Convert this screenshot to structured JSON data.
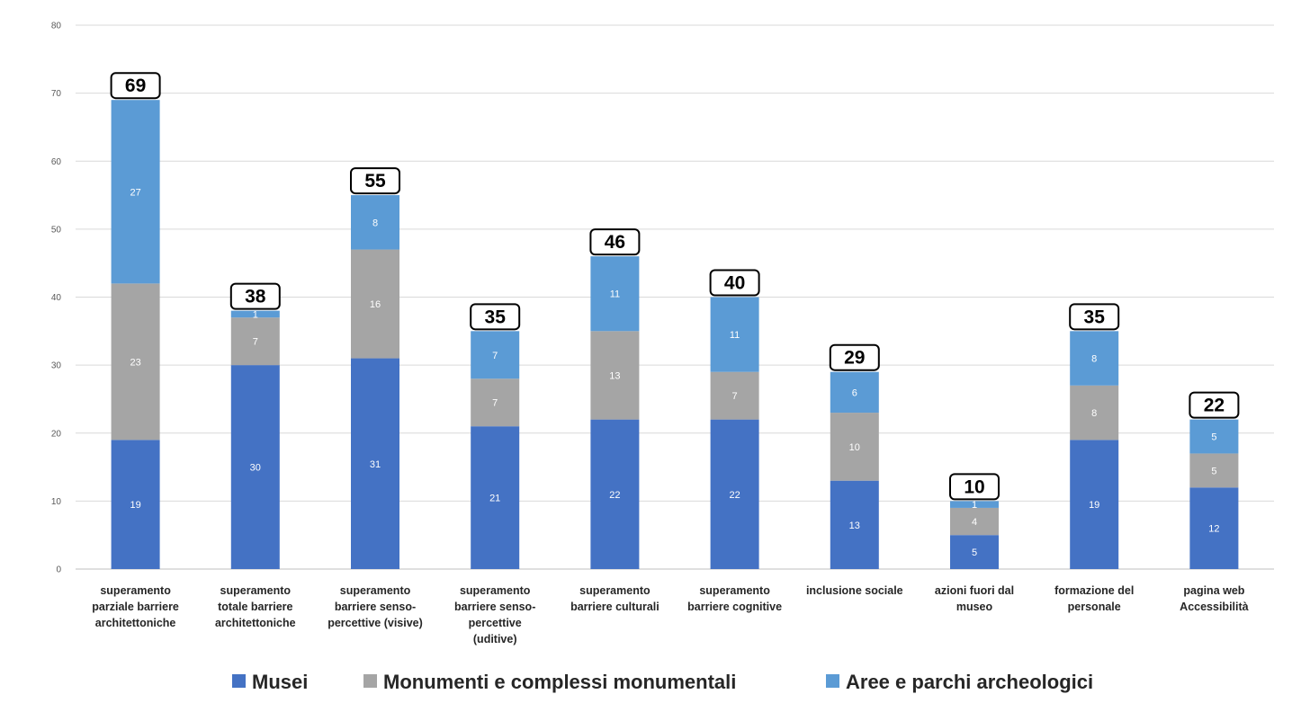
{
  "chart_data": {
    "type": "bar",
    "stacked": true,
    "categories": [
      [
        "superamento",
        "parziale barriere",
        "architettoniche"
      ],
      [
        "superamento",
        "totale barriere",
        "architettoniche"
      ],
      [
        "superamento",
        "barriere senso-",
        "percettive (visive)"
      ],
      [
        "superamento",
        "barriere senso-",
        "percettive",
        "(uditive)"
      ],
      [
        "superamento",
        "barriere culturali"
      ],
      [
        "superamento",
        "barriere cognitive"
      ],
      [
        "inclusione sociale"
      ],
      [
        "azioni fuori dal",
        "museo"
      ],
      [
        "formazione del",
        "personale"
      ],
      [
        "pagina web",
        "Accessibilità"
      ]
    ],
    "series": [
      {
        "name": "Musei",
        "color": "#4472c4",
        "values": [
          19,
          30,
          31,
          21,
          22,
          22,
          13,
          5,
          19,
          12
        ]
      },
      {
        "name": "Monumenti e complessi monumentali",
        "color": "#a5a5a5",
        "values": [
          23,
          7,
          16,
          7,
          13,
          7,
          10,
          4,
          8,
          5
        ]
      },
      {
        "name": "Aree e parchi archeologici",
        "color": "#5b9bd5",
        "values": [
          27,
          1,
          8,
          7,
          11,
          11,
          6,
          1,
          8,
          5
        ]
      }
    ],
    "totals": [
      69,
      38,
      55,
      35,
      46,
      40,
      29,
      10,
      35,
      22
    ],
    "ylim": [
      0,
      80
    ],
    "yticks": [
      0,
      10,
      20,
      30,
      40,
      50,
      60,
      70,
      80
    ],
    "grid": true,
    "legend_position": "bottom",
    "title": "",
    "xlabel": "",
    "ylabel": ""
  }
}
